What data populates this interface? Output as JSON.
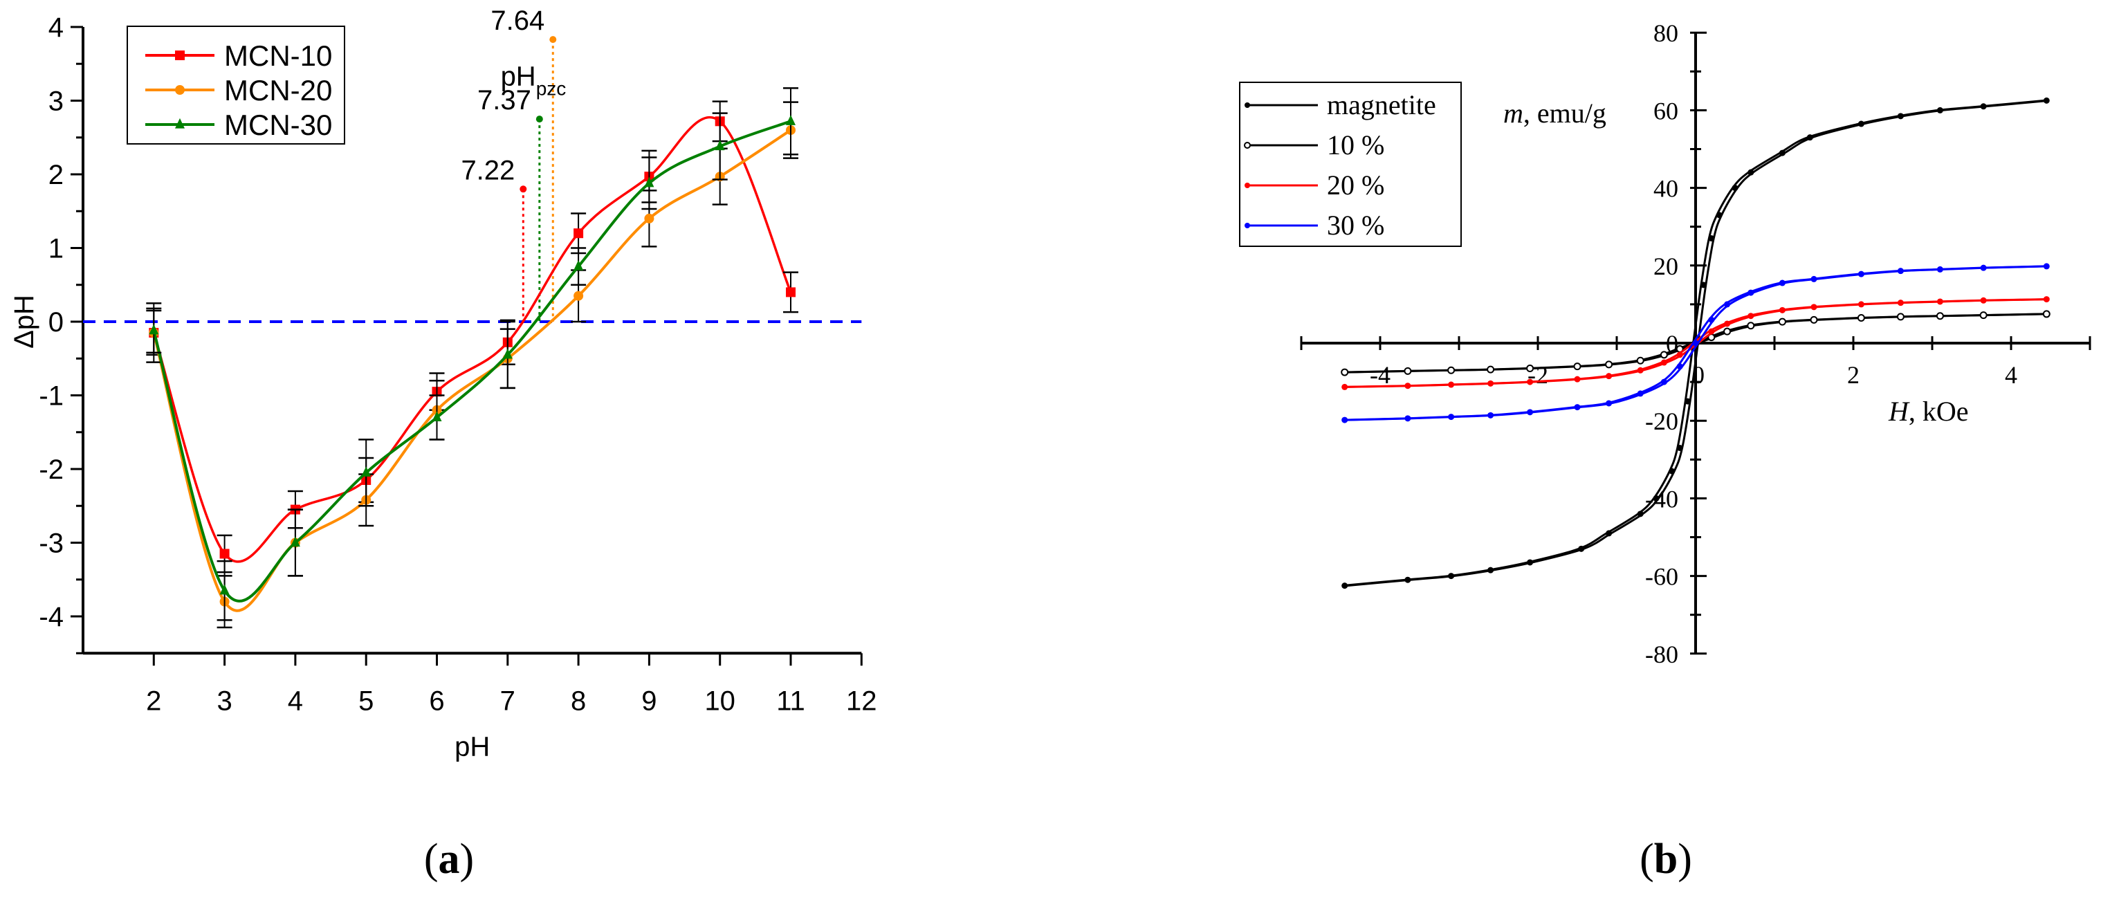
{
  "chart_data": [
    {
      "panel_label": "(a)",
      "type": "line",
      "xlabel": "pH",
      "ylabel": "ΔpH",
      "xlim": [
        1,
        12
      ],
      "ylim": [
        -4.5,
        4
      ],
      "xticks": [
        2,
        3,
        4,
        5,
        6,
        7,
        8,
        9,
        10,
        11,
        12
      ],
      "yticks": [
        -4,
        -3,
        -2,
        -1,
        0,
        1,
        2,
        3,
        4
      ],
      "grid": false,
      "legend_position": "top-left",
      "reference_line": {
        "y": 0,
        "style": "dashed",
        "color": "#0000ff"
      },
      "x": [
        2,
        3,
        4,
        5,
        6,
        7,
        8,
        9,
        10,
        11
      ],
      "series": [
        {
          "name": "MCN-10",
          "color": "#ff0000",
          "marker": "square",
          "values": [
            -0.15,
            -3.15,
            -2.55,
            -2.15,
            -0.95,
            -0.28,
            1.2,
            1.97,
            2.72,
            0.4
          ],
          "errors": [
            0.3,
            0.25,
            0.25,
            0.3,
            0.25,
            0.3,
            0.27,
            0.35,
            0.27,
            0.27
          ]
        },
        {
          "name": "MCN-20",
          "color": "#ff8c00",
          "marker": "circle",
          "values": [
            -0.15,
            -3.8,
            -3.0,
            -2.42,
            -1.2,
            -0.5,
            0.35,
            1.4,
            1.97,
            2.6
          ],
          "errors": [
            0.4,
            0.35,
            0.45,
            0.35,
            0.4,
            0.4,
            0.35,
            0.38,
            0.38,
            0.38
          ]
        },
        {
          "name": "MCN-30",
          "color": "#008000",
          "marker": "triangle",
          "values": [
            -0.12,
            -3.65,
            -3.0,
            -2.05,
            -1.3,
            -0.45,
            0.75,
            1.88,
            2.38,
            2.72
          ],
          "errors": [
            0.3,
            0.4,
            0.45,
            0.45,
            0.3,
            0.45,
            0.25,
            0.35,
            0.45,
            0.45
          ]
        }
      ],
      "annotations": {
        "title": "pH",
        "subscript": "pzc",
        "items": [
          {
            "label": "7.22",
            "x": 7.22,
            "y": 1.8,
            "color": "#ff0000"
          },
          {
            "label": "7.37",
            "x": 7.45,
            "y": 2.75,
            "color": "#008000"
          },
          {
            "label": "7.64",
            "x": 7.64,
            "y": 3.83,
            "color": "#ff8c00"
          }
        ]
      }
    },
    {
      "panel_label": "(b)",
      "type": "line",
      "xlabel_italic": "H",
      "xlabel_rest": ", kOe",
      "ylabel_italic": "m",
      "ylabel_rest": ", emu/g",
      "xlim": [
        -5,
        5
      ],
      "ylim": [
        -80,
        80
      ],
      "xticks": [
        -4,
        -2,
        0,
        2,
        4
      ],
      "yticks": [
        -80,
        -60,
        -40,
        -20,
        0,
        20,
        40,
        60,
        80
      ],
      "grid": false,
      "legend_position": "top-left",
      "series": [
        {
          "name": "magnetite",
          "color": "#000000",
          "marker": "filled-circle",
          "x": [
            0.1,
            0.2,
            0.3,
            0.5,
            0.7,
            1.1,
            1.45,
            2.1,
            2.6,
            3.1,
            3.65,
            4.45
          ],
          "values": [
            15,
            27,
            33,
            40,
            44,
            49,
            53,
            56.5,
            58.5,
            60,
            61,
            62.5
          ]
        },
        {
          "name": "10 %",
          "color": "#000000",
          "marker": "open-circle",
          "x": [
            0.2,
            0.4,
            0.7,
            1.1,
            1.5,
            2.1,
            2.6,
            3.1,
            3.65,
            4.45
          ],
          "values": [
            1.5,
            3,
            4.5,
            5.5,
            6.0,
            6.5,
            6.8,
            7.0,
            7.2,
            7.5
          ]
        },
        {
          "name": "20 %",
          "color": "#ff0000",
          "marker": "filled-circle",
          "x": [
            0.2,
            0.4,
            0.7,
            1.1,
            1.5,
            2.1,
            2.6,
            3.1,
            3.65,
            4.45
          ],
          "values": [
            3,
            5,
            7,
            8.5,
            9.3,
            10,
            10.4,
            10.7,
            11,
            11.3
          ]
        },
        {
          "name": "30 %",
          "color": "#0000ff",
          "marker": "filled-circle",
          "x": [
            0.2,
            0.4,
            0.7,
            1.1,
            1.5,
            2.1,
            2.6,
            3.1,
            3.65,
            4.45
          ],
          "values": [
            6,
            10,
            13,
            15.5,
            16.5,
            17.8,
            18.6,
            19,
            19.4,
            19.8
          ]
        }
      ]
    }
  ]
}
